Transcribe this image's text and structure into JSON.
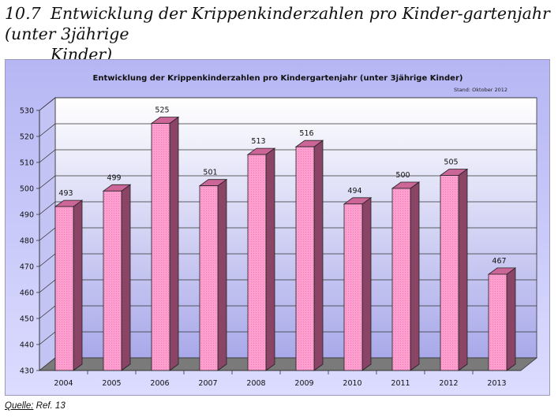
{
  "section": {
    "number": "10.7",
    "title_line1": "Entwicklung der Krippenkinderzahlen pro Kinder-gartenjahr (unter 3jährige",
    "title_line2": "Kinder)"
  },
  "source": {
    "label": "Quelle:",
    "ref": "Ref. 13"
  },
  "colors": {
    "bar_front": "#ff99cc",
    "bar_side": "#8a4466",
    "bar_top": "#cc6699",
    "floor": "#7a7a7a",
    "bg_top": "#b8b8f6",
    "bg_bottom": "#d8d8ff"
  },
  "chart_data": {
    "type": "bar",
    "title": "Entwicklung der Krippenkinderzahlen pro Kindergartenjahr (unter 3jährige Kinder)",
    "note": "Stand: Oktober 2012",
    "categories": [
      "2004",
      "2005",
      "2006",
      "2007",
      "2008",
      "2009",
      "2010",
      "2011",
      "2012",
      "2013"
    ],
    "values": [
      493,
      499,
      525,
      501,
      513,
      516,
      494,
      500,
      505,
      467
    ],
    "ylim": [
      430,
      530
    ],
    "yticks": [
      430,
      440,
      450,
      460,
      470,
      480,
      490,
      500,
      510,
      520,
      530
    ],
    "grid": true,
    "xlabel": "",
    "ylabel": ""
  }
}
